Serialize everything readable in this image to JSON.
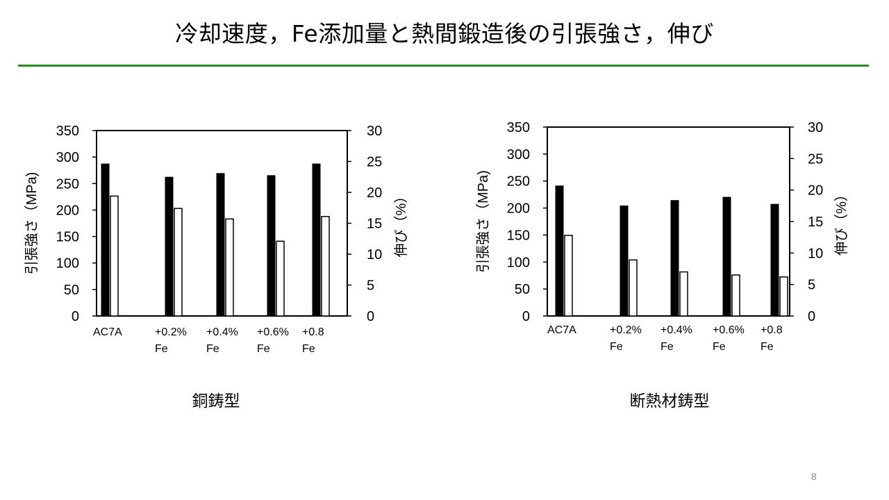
{
  "slide": {
    "title": "冷却速度，Fe添加量と熱間鍛造後の引張強さ，伸び",
    "page_number": "8",
    "accent_color": "#2a8a1f"
  },
  "chart_data": [
    {
      "type": "bar",
      "caption": "銅鋳型",
      "categories": [
        "AC7A",
        "+0.2%\nFe",
        "+0.4%\nFe",
        "+0.6%\nFe",
        "+0.8\nFe"
      ],
      "ylabel": "引張強さ（MPa)",
      "y2label": "伸び（%）",
      "ylim": [
        0,
        350
      ],
      "y2lim": [
        0,
        30
      ],
      "yticks": [
        0,
        50,
        100,
        150,
        200,
        250,
        300,
        350
      ],
      "y2ticks": [
        0,
        5,
        10,
        15,
        20,
        25,
        30
      ],
      "series": [
        {
          "axis": "left",
          "color": "#000000",
          "values": [
            287,
            262,
            269,
            265,
            287
          ]
        },
        {
          "axis": "right",
          "color": "#ffffff",
          "values": [
            19.4,
            17.4,
            15.7,
            12.1,
            16.1
          ]
        }
      ],
      "grid": false
    },
    {
      "type": "bar",
      "caption": "断熱材鋳型",
      "categories": [
        "AC7A",
        "+0.2%\nFe",
        "+0.4%\nFe",
        "+0.6%\nFe",
        "+0.8\nFe"
      ],
      "ylabel": "引張強さ（MPa)",
      "y2label": "伸び（%）",
      "ylim": [
        0,
        350
      ],
      "y2lim": [
        0,
        30
      ],
      "yticks": [
        0,
        50,
        100,
        150,
        200,
        250,
        300,
        350
      ],
      "y2ticks": [
        0,
        5,
        10,
        15,
        20,
        25,
        30
      ],
      "series": [
        {
          "axis": "left",
          "color": "#000000",
          "values": [
            241,
            204,
            214,
            220,
            207
          ]
        },
        {
          "axis": "right",
          "color": "#ffffff",
          "values": [
            12.8,
            8.9,
            7.0,
            6.5,
            6.2
          ]
        }
      ],
      "grid": false
    }
  ]
}
